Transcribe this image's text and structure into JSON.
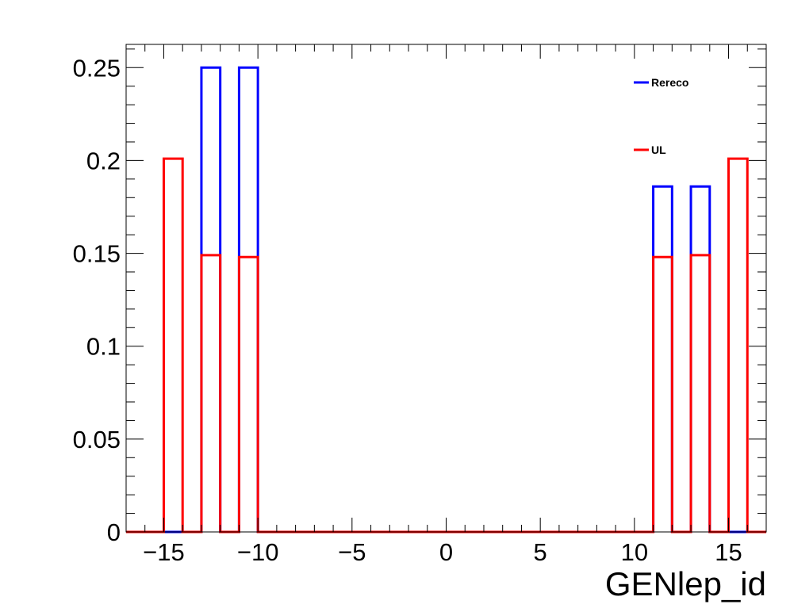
{
  "chart_data": {
    "type": "histogram-step",
    "title": "",
    "xlabel": "GENlep_id",
    "ylabel": "",
    "xlim": [
      -17,
      17
    ],
    "ylim": [
      0,
      0.2625
    ],
    "grid": false,
    "legend_placement": "top-right",
    "x_ticks": [
      -15,
      -10,
      -5,
      0,
      5,
      10,
      15
    ],
    "x_tick_labels": [
      "−15",
      "−10",
      "−5",
      "0",
      "5",
      "10",
      "15"
    ],
    "y_ticks": [
      0,
      0.05,
      0.1,
      0.15,
      0.2,
      0.25
    ],
    "y_tick_labels": [
      "0",
      "0.05",
      "0.1",
      "0.15",
      "0.2",
      "0.25"
    ],
    "bin_edges": [
      -17,
      -16,
      -15,
      -14,
      -13,
      -12,
      -11,
      -10,
      -9,
      -8,
      -7,
      -6,
      -5,
      -4,
      -3,
      -2,
      -1,
      0,
      1,
      2,
      3,
      4,
      5,
      6,
      7,
      8,
      9,
      10,
      11,
      12,
      13,
      14,
      15,
      16,
      17
    ],
    "series": [
      {
        "name": "Rereco",
        "color": "#0000ff",
        "values": [
          0,
          0,
          0,
          0,
          0.25,
          0,
          0.25,
          0,
          0,
          0,
          0,
          0,
          0,
          0,
          0,
          0,
          0,
          0,
          0,
          0,
          0,
          0,
          0,
          0,
          0,
          0,
          0,
          0,
          0.186,
          0,
          0.186,
          0,
          0,
          0
        ]
      },
      {
        "name": "UL",
        "color": "#ff0000",
        "values": [
          0,
          0,
          0.201,
          0,
          0.149,
          0,
          0.148,
          0,
          0,
          0,
          0,
          0,
          0,
          0,
          0,
          0,
          0,
          0,
          0,
          0,
          0,
          0,
          0,
          0,
          0,
          0,
          0,
          0,
          0.148,
          0,
          0.149,
          0,
          0.201,
          0
        ]
      }
    ]
  }
}
